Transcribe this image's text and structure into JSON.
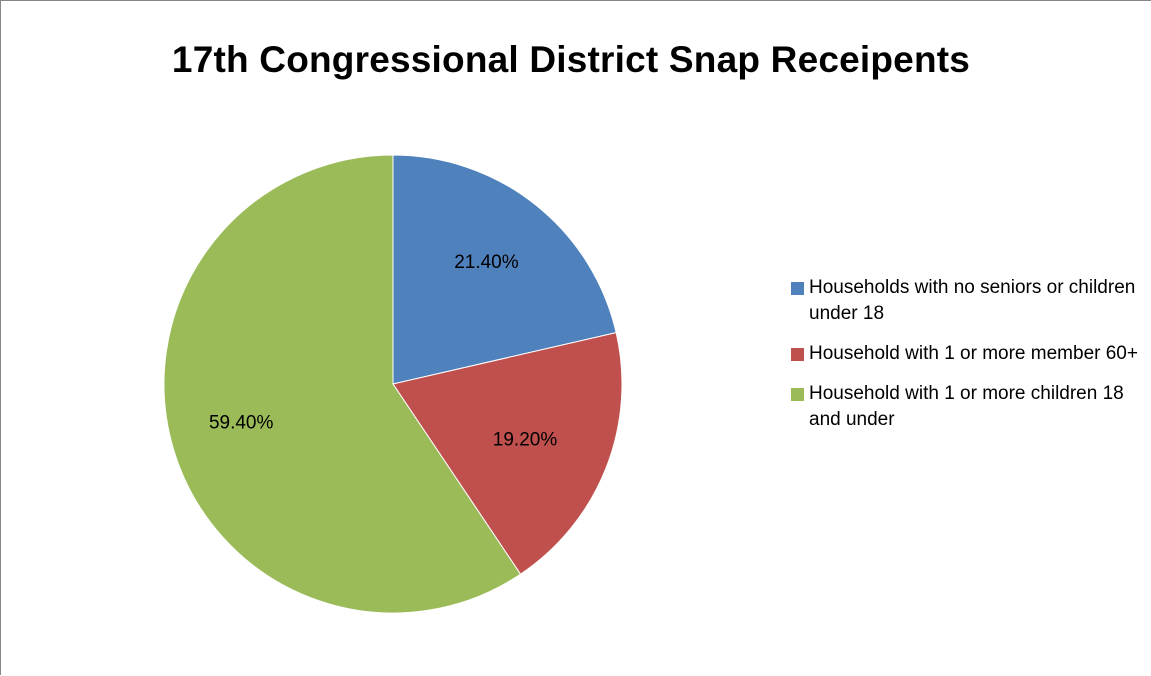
{
  "chart_data": {
    "type": "pie",
    "title": "17th Congressional District Snap Receipents",
    "legend_position": "right",
    "slices": [
      {
        "label": "Households with no seniors or children under 18",
        "value": 21.4,
        "display": "21.40%",
        "color": "#4f81bd"
      },
      {
        "label": "Household with 1 or more member 60+",
        "value": 19.2,
        "display": "19.20%",
        "color": "#c0504d"
      },
      {
        "label": "Household with 1 or more children 18 and under",
        "value": 59.4,
        "display": "59.40%",
        "color": "#9bbb59"
      }
    ]
  }
}
